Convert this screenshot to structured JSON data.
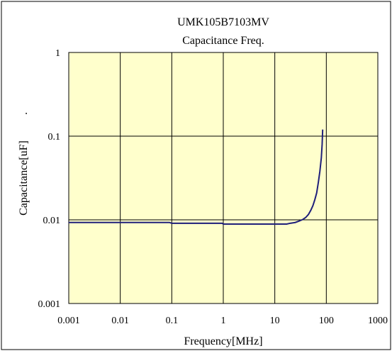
{
  "chart_data": {
    "type": "line",
    "title": "UMK105B7103MV",
    "subtitle": "Capacitance Freq.",
    "xlabel": "Frequency[MHz]",
    "ylabel": "Capacitance[uF]",
    "ylabel_suffix": ".",
    "x_scale": "log",
    "y_scale": "log",
    "xlim": [
      0.001,
      1000
    ],
    "ylim": [
      0.001,
      1
    ],
    "x_ticks": [
      0.001,
      0.01,
      0.1,
      1,
      10,
      100,
      1000
    ],
    "y_ticks": [
      0.001,
      0.01,
      0.1,
      1
    ],
    "x_tick_labels": [
      "0.001",
      "0.01",
      "0.1",
      "1",
      "10",
      "100",
      "1000"
    ],
    "y_tick_labels": [
      "0.001",
      "0.01",
      "0.1",
      "1"
    ],
    "grid": true,
    "legend": "none",
    "plot_background": "#ffffcc",
    "line_color": "#1f1f7a",
    "series": [
      {
        "x": [
          0.001,
          0.01,
          0.05,
          0.09,
          0.1,
          0.5,
          0.95,
          1.0,
          3,
          10,
          17,
          20,
          25,
          30,
          35,
          40,
          45,
          50,
          55,
          60,
          65,
          70,
          75,
          80,
          83,
          85
        ],
        "values": [
          0.0093,
          0.0093,
          0.0093,
          0.0093,
          0.0091,
          0.0091,
          0.0091,
          0.0089,
          0.0089,
          0.0089,
          0.0089,
          0.0091,
          0.0093,
          0.0097,
          0.0101,
          0.0107,
          0.0116,
          0.013,
          0.0148,
          0.0175,
          0.021,
          0.028,
          0.038,
          0.055,
          0.08,
          0.12
        ]
      }
    ]
  }
}
